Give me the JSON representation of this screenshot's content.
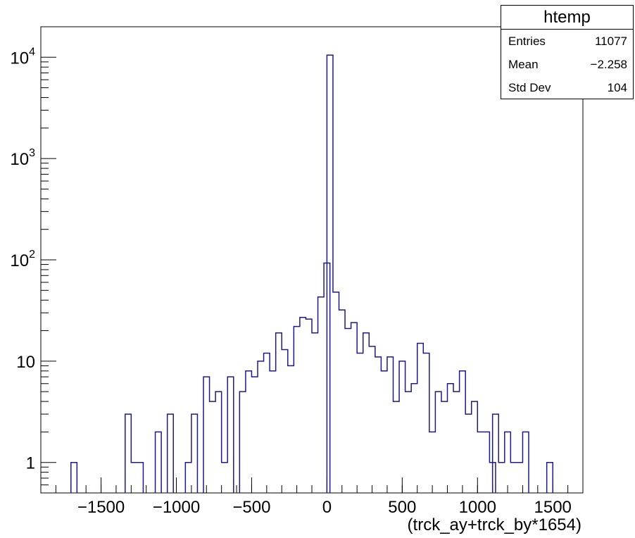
{
  "chart_data": {
    "type": "histogram",
    "title": "",
    "xlabel": "(trck_ay+trck_by*1654)",
    "ylabel": "",
    "xlim": [
      -1900,
      1700
    ],
    "ylim": [
      0.5,
      20000
    ],
    "yscale": "log",
    "grid": false,
    "bin_width": 40,
    "x_ticks": [
      {
        "value": -1500,
        "label": "−1500"
      },
      {
        "value": -1000,
        "label": "−1000"
      },
      {
        "value": -500,
        "label": "−500"
      },
      {
        "value": 0,
        "label": "0"
      },
      {
        "value": 500,
        "label": "500"
      },
      {
        "value": 1000,
        "label": "1000"
      },
      {
        "value": 1500,
        "label": "1500"
      }
    ],
    "y_ticks": [
      {
        "value": 1,
        "label": "1"
      },
      {
        "value": 10,
        "label": "10"
      },
      {
        "value": 100,
        "base": "10",
        "exp": "2"
      },
      {
        "value": 1000,
        "base": "10",
        "exp": "3"
      },
      {
        "value": 10000,
        "base": "10",
        "exp": "4"
      }
    ],
    "line_color": "#1a1a8c",
    "series": [
      {
        "bins": [
          {
            "x0": -1700,
            "y": 1
          },
          {
            "x0": -1340,
            "y": 3
          },
          {
            "x0": -1300,
            "y": 1
          },
          {
            "x0": -1260,
            "y": 1
          },
          {
            "x0": -1140,
            "y": 2
          },
          {
            "x0": -1060,
            "y": 3
          },
          {
            "x0": -940,
            "y": 1
          },
          {
            "x0": -900,
            "y": 3
          },
          {
            "x0": -820,
            "y": 7
          },
          {
            "x0": -780,
            "y": 4
          },
          {
            "x0": -740,
            "y": 5
          },
          {
            "x0": -700,
            "y": 1
          },
          {
            "x0": -660,
            "y": 7
          },
          {
            "x0": -580,
            "y": 5
          },
          {
            "x0": -540,
            "y": 8
          },
          {
            "x0": -500,
            "y": 7
          },
          {
            "x0": -460,
            "y": 10
          },
          {
            "x0": -420,
            "y": 12
          },
          {
            "x0": -380,
            "y": 8
          },
          {
            "x0": -340,
            "y": 19
          },
          {
            "x0": -300,
            "y": 13
          },
          {
            "x0": -260,
            "y": 9
          },
          {
            "x0": -220,
            "y": 22
          },
          {
            "x0": -180,
            "y": 27
          },
          {
            "x0": -140,
            "y": 26
          },
          {
            "x0": -100,
            "y": 19
          },
          {
            "x0": -60,
            "y": 43
          },
          {
            "x0": -20,
            "y": 93
          },
          {
            "x0": 0,
            "y": 10500
          },
          {
            "x0": 40,
            "y": 48
          },
          {
            "x0": 80,
            "y": 32
          },
          {
            "x0": 120,
            "y": 21
          },
          {
            "x0": 160,
            "y": 24
          },
          {
            "x0": 200,
            "y": 12
          },
          {
            "x0": 240,
            "y": 19
          },
          {
            "x0": 280,
            "y": 14
          },
          {
            "x0": 320,
            "y": 11
          },
          {
            "x0": 360,
            "y": 8
          },
          {
            "x0": 400,
            "y": 11
          },
          {
            "x0": 440,
            "y": 4
          },
          {
            "x0": 480,
            "y": 10
          },
          {
            "x0": 520,
            "y": 5
          },
          {
            "x0": 560,
            "y": 6
          },
          {
            "x0": 600,
            "y": 15
          },
          {
            "x0": 640,
            "y": 12
          },
          {
            "x0": 680,
            "y": 2
          },
          {
            "x0": 720,
            "y": 5
          },
          {
            "x0": 760,
            "y": 4
          },
          {
            "x0": 800,
            "y": 6
          },
          {
            "x0": 840,
            "y": 5
          },
          {
            "x0": 880,
            "y": 8
          },
          {
            "x0": 920,
            "y": 3
          },
          {
            "x0": 960,
            "y": 4
          },
          {
            "x0": 1000,
            "y": 2
          },
          {
            "x0": 1040,
            "y": 2
          },
          {
            "x0": 1080,
            "y": 1
          },
          {
            "x0": 1100,
            "y": 3
          },
          {
            "x0": 1140,
            "y": 1
          },
          {
            "x0": 1180,
            "y": 2
          },
          {
            "x0": 1220,
            "y": 1
          },
          {
            "x0": 1260,
            "y": 1
          },
          {
            "x0": 1300,
            "y": 2
          },
          {
            "x0": 1460,
            "y": 1
          }
        ]
      }
    ]
  },
  "stats": {
    "title": "htemp",
    "rows": [
      {
        "label": "Entries",
        "value": "11077"
      },
      {
        "label": "Mean",
        "value": "−2.258"
      },
      {
        "label": "Std Dev",
        "value": "104"
      }
    ]
  }
}
